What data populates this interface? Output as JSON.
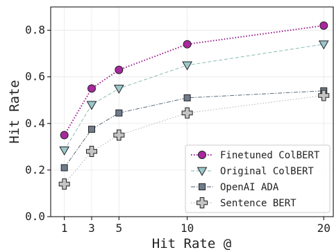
{
  "chart_data": {
    "type": "line",
    "xlabel": "Hit Rate @",
    "ylabel": "Hit Rate",
    "x": [
      1,
      3,
      5,
      10,
      20
    ],
    "x_ticks": [
      "1",
      "3",
      "5",
      "10",
      "20"
    ],
    "y_ticks": [
      "0.0",
      "0.2",
      "0.4",
      "0.6",
      "0.8"
    ],
    "xlim": [
      0,
      20.7
    ],
    "ylim": [
      0,
      0.9
    ],
    "grid": true,
    "legend_position": "bottom-right",
    "series": [
      {
        "name": "Finetuned ColBERT",
        "values": [
          0.35,
          0.55,
          0.63,
          0.74,
          0.82
        ],
        "color": "#9b1a8c",
        "marker": "circle",
        "line_style": "dotted"
      },
      {
        "name": "Original ColBERT",
        "values": [
          0.285,
          0.48,
          0.55,
          0.65,
          0.74
        ],
        "color": "#7fb3ae",
        "marker": "triangle-down",
        "line_style": "dashed"
      },
      {
        "name": "OpenAI ADA",
        "values": [
          0.21,
          0.375,
          0.445,
          0.51,
          0.54
        ],
        "color": "#4a5a6a",
        "marker": "square",
        "line_style": "dashdot"
      },
      {
        "name": "Sentence BERT",
        "values": [
          0.14,
          0.28,
          0.35,
          0.445,
          0.52
        ],
        "color": "#9aaab0",
        "marker": "plus",
        "line_style": "dotted"
      }
    ],
    "marker_fills": [
      "#a8289e",
      "#9cc7cc",
      "#6f7c8c",
      "#c4c4c4"
    ]
  }
}
